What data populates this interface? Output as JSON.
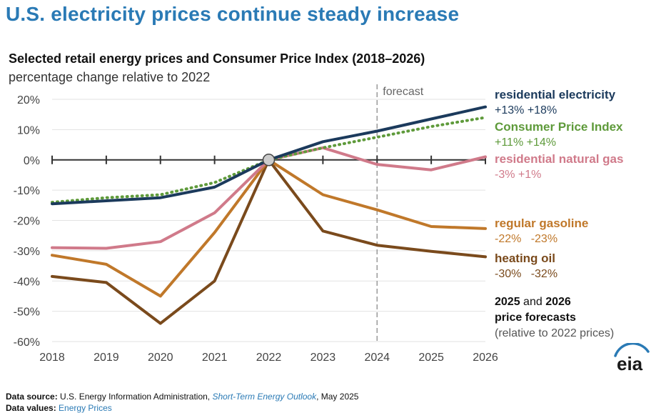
{
  "headline": "U.S. electricity prices continue steady increase",
  "chart_data": {
    "type": "line",
    "title": "Selected retail energy prices and Consumer Price Index (2018–2026)",
    "subtitle": "percentage change relative to 2022",
    "x": [
      "2018",
      "2019",
      "2020",
      "2021",
      "2022",
      "2023",
      "2024",
      "2025",
      "2026"
    ],
    "ylim": [
      -60,
      20
    ],
    "yticks": [
      20,
      10,
      0,
      -10,
      -20,
      -30,
      -40,
      -50,
      -60
    ],
    "ytick_labels": [
      "20%",
      "10%",
      "0%",
      "-10%",
      "-20%",
      "-30%",
      "-40%",
      "-50%",
      "-60%"
    ],
    "forecast_start": "2024",
    "forecast_label": "forecast",
    "reference_point": "2022",
    "series": [
      {
        "name": "residential electricity",
        "color": "#1b3a5c",
        "style": "solid",
        "values": [
          -14.5,
          -13.5,
          -12.5,
          -9,
          0,
          6,
          9.5,
          13.5,
          17.5
        ],
        "labels": "+13% +18%"
      },
      {
        "name": "Consumer Price Index",
        "color": "#5e9a3a",
        "style": "dotted",
        "values": [
          -14,
          -12.5,
          -11.5,
          -7.5,
          0,
          4,
          7.5,
          11,
          14
        ],
        "labels": "+11% +14%"
      },
      {
        "name": "residential natural gas",
        "color": "#d07a8a",
        "style": "solid",
        "values": [
          -29,
          -29.2,
          -27,
          -17.5,
          0,
          4,
          -1.5,
          -3.3,
          1
        ],
        "labels": "-3% +1%"
      },
      {
        "name": "regular gasoline",
        "color": "#c0782a",
        "style": "solid",
        "values": [
          -31.5,
          -34.5,
          -45,
          -24,
          0,
          -11.5,
          -16.5,
          -22,
          -22.7
        ],
        "labels": "-22%   -23%"
      },
      {
        "name": "heating oil",
        "color": "#7a4a1c",
        "style": "solid",
        "values": [
          -38.5,
          -40.5,
          -54,
          -40,
          0,
          -23.5,
          -28.2,
          -30.2,
          -32
        ],
        "labels": "-30%   -32%"
      }
    ]
  },
  "legend_note": {
    "years_a": "2025",
    "and": " and ",
    "years_b": "2026",
    "line2": "price forecasts",
    "line3": "(relative to 2022 prices)"
  },
  "footer": {
    "source_label": "Data source:",
    "source_text": " U.S. Energy Information Administration, ",
    "source_title": "Short-Term Energy Outlook",
    "source_date": ", May 2025",
    "values_label": "Data values:",
    "values_link": "Energy Prices"
  },
  "logo_text": "eia"
}
